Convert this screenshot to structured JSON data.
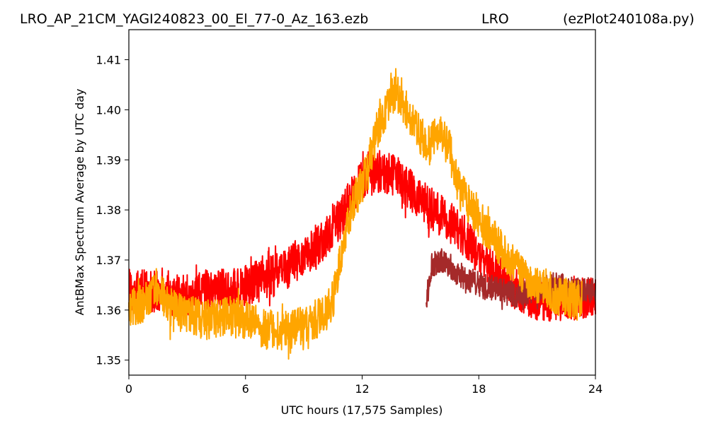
{
  "chart_data": {
    "type": "line",
    "title_left": "LRO_AP_21CM_YAGI240823_00_El_77-0_Az_163.ezb",
    "title_center": "LRO",
    "title_right": "(ezPlot240108a.py)",
    "xlabel": "UTC hours  (17,575 Samples)",
    "ylabel": "AntBMax Spectrum Average by UTC day",
    "xlim": [
      0,
      24
    ],
    "ylim": [
      1.347,
      1.416
    ],
    "xticks": [
      0,
      6,
      12,
      18,
      24
    ],
    "xtick_labels": [
      "0",
      "6",
      "12",
      "18",
      "24"
    ],
    "yticks": [
      1.35,
      1.36,
      1.37,
      1.38,
      1.39,
      1.4,
      1.41
    ],
    "ytick_labels": [
      "1.35",
      "1.36",
      "1.37",
      "1.38",
      "1.39",
      "1.40",
      "1.41"
    ],
    "grid": false,
    "series": [
      {
        "color": "#ff0000",
        "noise": 0.0042,
        "x": [
          0,
          1,
          2,
          3,
          4,
          5,
          6,
          7,
          8,
          9,
          10,
          11,
          11.5,
          12,
          12.5,
          13,
          13.5,
          14,
          15,
          16,
          17,
          18,
          19,
          20,
          21,
          22,
          23,
          24
        ],
        "values": [
          1.364,
          1.364,
          1.363,
          1.363,
          1.364,
          1.364,
          1.365,
          1.366,
          1.368,
          1.371,
          1.374,
          1.379,
          1.383,
          1.386,
          1.387,
          1.388,
          1.387,
          1.386,
          1.382,
          1.379,
          1.376,
          1.371,
          1.367,
          1.364,
          1.362,
          1.362,
          1.362,
          1.363
        ]
      },
      {
        "color": "#a52a2a",
        "noise": 0.0026,
        "x": [
          15.3,
          15.6,
          16,
          16.5,
          17,
          18,
          19,
          20,
          21,
          22,
          23,
          24
        ],
        "values": [
          1.362,
          1.369,
          1.37,
          1.369,
          1.367,
          1.365,
          1.364,
          1.363,
          1.364,
          1.365,
          1.364,
          1.364
        ]
      },
      {
        "color": "#ffa500",
        "noise": 0.004,
        "x": [
          0,
          1,
          1.5,
          2,
          3,
          4,
          5,
          6,
          7,
          8,
          9,
          10,
          10.5,
          11,
          11.5,
          12,
          12.5,
          13,
          13.5,
          14,
          14.5,
          15,
          15.5,
          16,
          16.5,
          17,
          18,
          19,
          20,
          21,
          22,
          23,
          23.3
        ],
        "values": [
          1.36,
          1.362,
          1.365,
          1.361,
          1.359,
          1.358,
          1.359,
          1.358,
          1.356,
          1.356,
          1.357,
          1.359,
          1.362,
          1.373,
          1.381,
          1.385,
          1.392,
          1.398,
          1.403,
          1.403,
          1.398,
          1.395,
          1.393,
          1.396,
          1.392,
          1.384,
          1.378,
          1.373,
          1.368,
          1.365,
          1.363,
          1.362,
          1.362
        ]
      }
    ]
  }
}
